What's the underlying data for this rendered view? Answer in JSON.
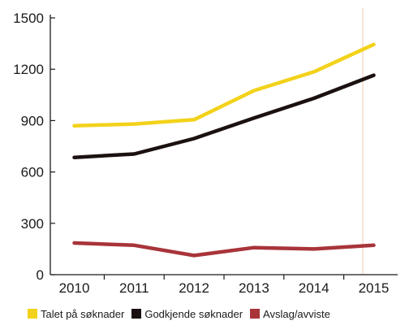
{
  "chart_data": {
    "type": "line",
    "title": "",
    "xlabel": "",
    "ylabel": "",
    "x": [
      2010,
      2011,
      2012,
      2013,
      2014,
      2015
    ],
    "x_tick_labels": [
      "2010",
      "2011",
      "2012",
      "2013",
      "2014",
      "2015"
    ],
    "y_ticks": [
      0,
      300,
      600,
      900,
      1200,
      1500
    ],
    "y_tick_labels": [
      "0",
      "300",
      "600",
      "900",
      "1200",
      "1500"
    ],
    "xlim": [
      2009.6,
      2015.4
    ],
    "ylim": [
      0,
      1500
    ],
    "grid": false,
    "legend_position": "bottom",
    "series": [
      {
        "name": "Talet på søknader",
        "color": "#f2d21b",
        "values": [
          870,
          880,
          905,
          1075,
          1185,
          1345
        ]
      },
      {
        "name": "Godkjende søknader",
        "color": "#1a1110",
        "values": [
          685,
          705,
          795,
          915,
          1030,
          1165
        ]
      },
      {
        "name": "Avslag/avviste",
        "color": "#a8343a",
        "values": [
          185,
          172,
          112,
          158,
          150,
          172
        ]
      }
    ]
  }
}
